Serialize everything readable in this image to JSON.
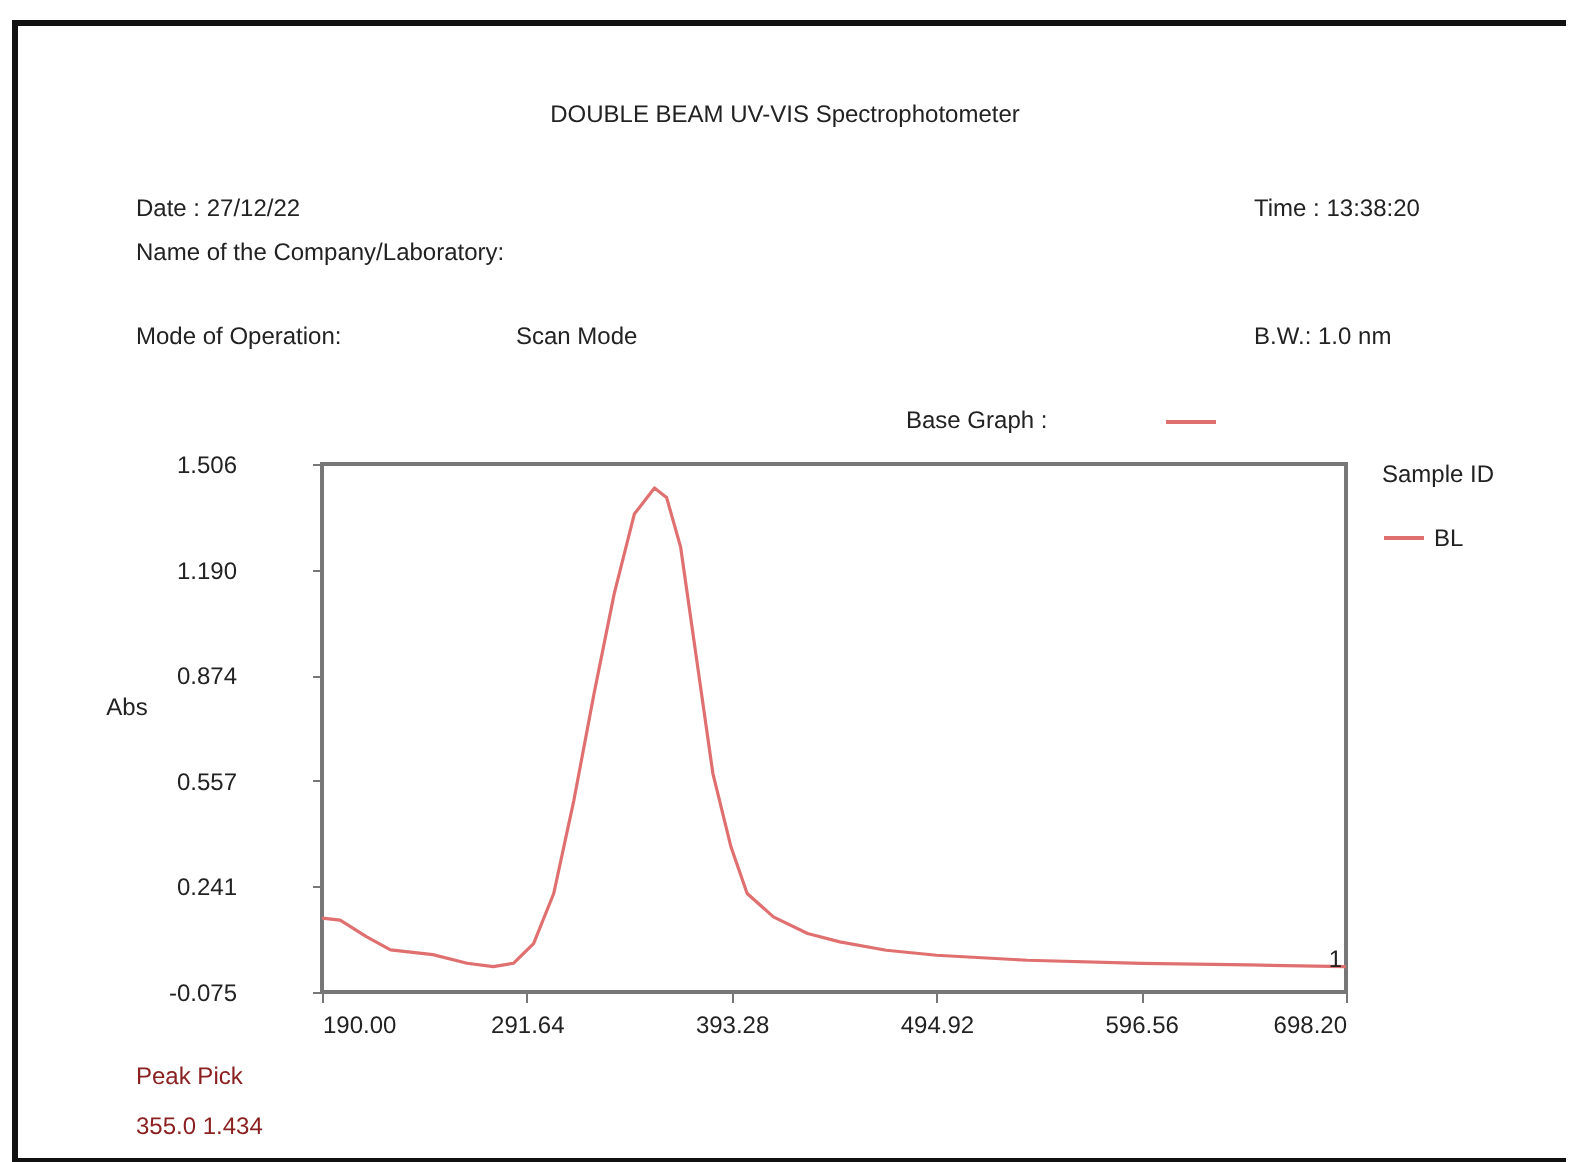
{
  "chart_data": {
    "type": "line",
    "title": "DOUBLE BEAM UV-VIS Spectrophotometer",
    "ylabel": "Abs",
    "legend_title": "Sample ID",
    "legend": "top right",
    "grid": false,
    "marker": "none",
    "line_style": "solid",
    "xlim": [
      190,
      698.2
    ],
    "ylim": [
      -0.075,
      1.506
    ],
    "xticks": [
      {
        "value": 190,
        "label": "190.00"
      },
      {
        "value": 291.64,
        "label": "291.64"
      },
      {
        "value": 393.28,
        "label": "393.28"
      },
      {
        "value": 494.92,
        "label": "494.92"
      },
      {
        "value": 596.56,
        "label": "596.56"
      },
      {
        "value": 698.2,
        "label": "698.20"
      }
    ],
    "yticks": [
      {
        "value": -0.075,
        "label": "-0.075"
      },
      {
        "value": 0.241,
        "label": "0.241"
      },
      {
        "value": 0.557,
        "label": "0.557"
      },
      {
        "value": 0.874,
        "label": "0.874"
      },
      {
        "value": 1.19,
        "label": "1.190"
      },
      {
        "value": 1.506,
        "label": "1.506"
      }
    ],
    "series": [
      {
        "name": "BL",
        "color": "#e07070",
        "x": [
          190,
          199,
          212,
          224,
          245,
          262,
          275,
          285,
          295,
          305,
          315,
          325,
          335,
          345,
          355,
          361,
          368,
          376,
          384,
          393,
          401,
          414,
          431,
          447,
          470,
          495,
          540,
          596.6,
          650,
          698.2
        ],
        "values": [
          0.146,
          0.14,
          0.091,
          0.051,
          0.037,
          0.011,
          0.001,
          0.011,
          0.07,
          0.22,
          0.499,
          0.818,
          1.117,
          1.356,
          1.434,
          1.406,
          1.257,
          0.918,
          0.579,
          0.359,
          0.22,
          0.15,
          0.1,
          0.075,
          0.05,
          0.035,
          0.02,
          0.011,
          0.006,
          0.001
        ]
      }
    ],
    "annotations": [
      "Date : 27/12/22",
      "Name of the Company/Laboratory:",
      "Mode of Operation:",
      "Scan Mode",
      "Time : 13:38:20",
      "B.W.:  1.0 nm",
      "Base Graph :",
      "Peak Pick",
      "355.0   1.434",
      {
        "text": "1",
        "x": 698.2,
        "y": 0.001
      }
    ]
  }
}
